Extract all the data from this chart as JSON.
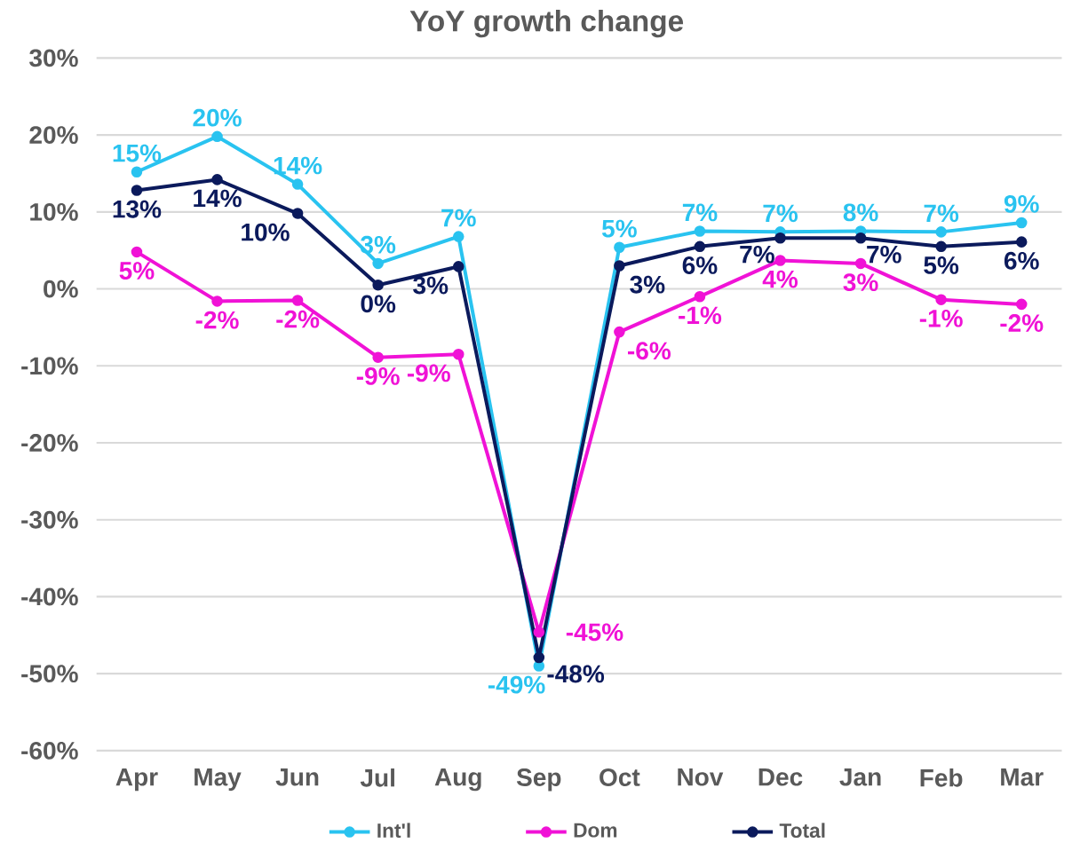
{
  "chart_data": {
    "type": "line",
    "title": "YoY growth change",
    "categories": [
      "Apr",
      "May",
      "Jun",
      "Jul",
      "Aug",
      "Sep",
      "Oct",
      "Nov",
      "Dec",
      "Jan",
      "Feb",
      "Mar"
    ],
    "series": [
      {
        "name": "Int'l",
        "color": "#29c3f0",
        "values": [
          15.2,
          19.8,
          13.6,
          3.3,
          6.8,
          -49.0,
          5.4,
          7.5,
          7.4,
          7.5,
          7.4,
          8.6
        ],
        "value_labels": [
          "15%",
          "20%",
          "14%",
          "3%",
          "7%",
          "-49%",
          "5%",
          "7%",
          "7%",
          "8%",
          "7%",
          "9%"
        ]
      },
      {
        "name": "Dom",
        "color": "#f012d6",
        "values": [
          4.8,
          -1.6,
          -1.5,
          -8.9,
          -8.5,
          -44.6,
          -5.6,
          -1.0,
          3.7,
          3.3,
          -1.4,
          -2.0
        ],
        "value_labels": [
          "5%",
          "-2%",
          "-2%",
          "-9%",
          "-9%",
          "-45%",
          "-6%",
          "-1%",
          "4%",
          "3%",
          "-1%",
          "-2%"
        ]
      },
      {
        "name": "Total",
        "color": "#0b1a5c",
        "values": [
          12.8,
          14.2,
          9.8,
          0.5,
          2.9,
          -47.9,
          3.0,
          5.5,
          6.6,
          6.6,
          5.5,
          6.1
        ],
        "value_labels": [
          "13%",
          "14%",
          "10%",
          "0%",
          "3%",
          "-48%",
          "3%",
          "6%",
          "7%",
          "7%",
          "5%",
          "6%"
        ]
      }
    ],
    "ylim": [
      -60,
      30
    ],
    "yticks": [
      {
        "value": -60,
        "label": "-60%"
      },
      {
        "value": -50,
        "label": "-50%"
      },
      {
        "value": -40,
        "label": "-40%"
      },
      {
        "value": -30,
        "label": "-30%"
      },
      {
        "value": -20,
        "label": "-20%"
      },
      {
        "value": -10,
        "label": "-10%"
      },
      {
        "value": 0,
        "label": "0%"
      },
      {
        "value": 10,
        "label": "10%"
      },
      {
        "value": 20,
        "label": "20%"
      },
      {
        "value": 30,
        "label": "30%"
      }
    ],
    "grid": "y",
    "legend": "bottom",
    "marker": "circle",
    "line_style": "solid"
  }
}
